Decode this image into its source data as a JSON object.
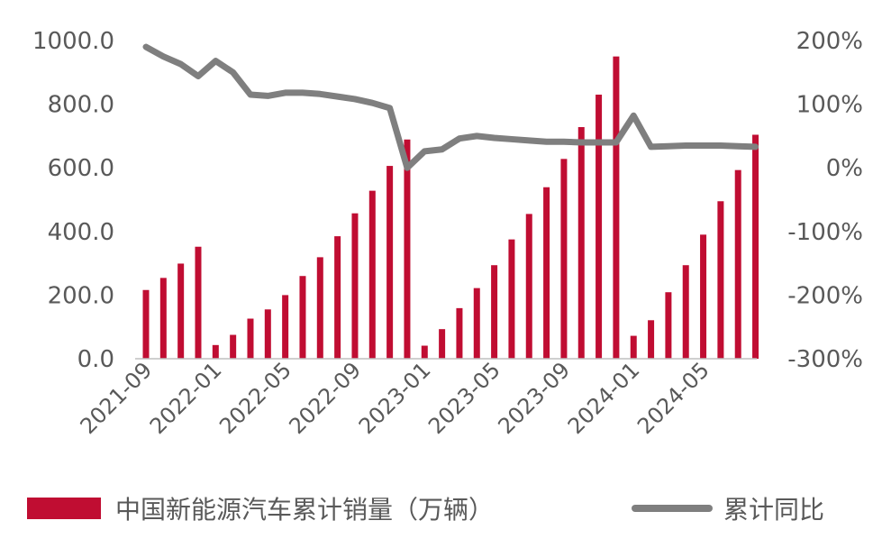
{
  "chart_data": {
    "type": "bar",
    "categories": [
      "2021-09",
      "2021-10",
      "2021-11",
      "2021-12",
      "2022-01",
      "2022-02",
      "2022-03",
      "2022-04",
      "2022-05",
      "2022-06",
      "2022-07",
      "2022-08",
      "2022-09",
      "2022-10",
      "2022-11",
      "2022-12",
      "2023-01",
      "2023-02",
      "2023-03",
      "2023-04",
      "2023-05",
      "2023-06",
      "2023-07",
      "2023-08",
      "2023-09",
      "2023-10",
      "2023-11",
      "2023-12",
      "2024-01",
      "2024-02",
      "2024-03",
      "2024-04",
      "2024-05",
      "2024-06",
      "2024-07",
      "2024-08"
    ],
    "x_tick_labels": [
      "2021-09",
      "2022-01",
      "2022-05",
      "2022-09",
      "2023-01",
      "2023-05",
      "2023-09",
      "2024-01",
      "2024-05"
    ],
    "series": [
      {
        "name": "中国新能源汽车累计销量（万辆）",
        "type": "bar",
        "axis": "left",
        "color": "#C00D32",
        "values": [
          216,
          254,
          299,
          352,
          43,
          75,
          126,
          155,
          200,
          260,
          319,
          385,
          457,
          528,
          606,
          689,
          41,
          93,
          159,
          222,
          294,
          375,
          455,
          539,
          628,
          728,
          830,
          950,
          72,
          121,
          209,
          294,
          390,
          495,
          593,
          704
        ]
      },
      {
        "name": "累计同比",
        "type": "line",
        "axis": "right",
        "color": "#7F7F7F",
        "values": [
          190,
          175,
          163,
          144,
          168,
          150,
          115,
          113,
          118,
          118,
          116,
          112,
          108,
          102,
          94,
          0,
          26,
          29,
          46,
          50,
          47,
          45,
          43,
          41,
          41,
          40,
          40,
          40,
          82,
          33,
          34,
          35,
          35,
          35,
          34,
          33
        ]
      }
    ],
    "y_left": {
      "ylim": [
        0,
        1000
      ],
      "ticks": [
        "1000.0",
        "800.0",
        "600.0",
        "400.0",
        "200.0",
        "0.0"
      ],
      "tick_values": [
        1000,
        800,
        600,
        400,
        200,
        0
      ]
    },
    "y_right": {
      "ylim": [
        -300,
        200
      ],
      "ticks": [
        "200%",
        "100%",
        "0%",
        "-100%",
        "-200%",
        "-300%"
      ],
      "tick_values": [
        200,
        100,
        0,
        -100,
        -200,
        -300
      ]
    },
    "title": "",
    "xlabel": "",
    "ylabel": "",
    "grid": false,
    "legend": {
      "placement": "bottom",
      "items": [
        "中国新能源汽车累计销量（万辆）",
        "累计同比"
      ]
    }
  }
}
